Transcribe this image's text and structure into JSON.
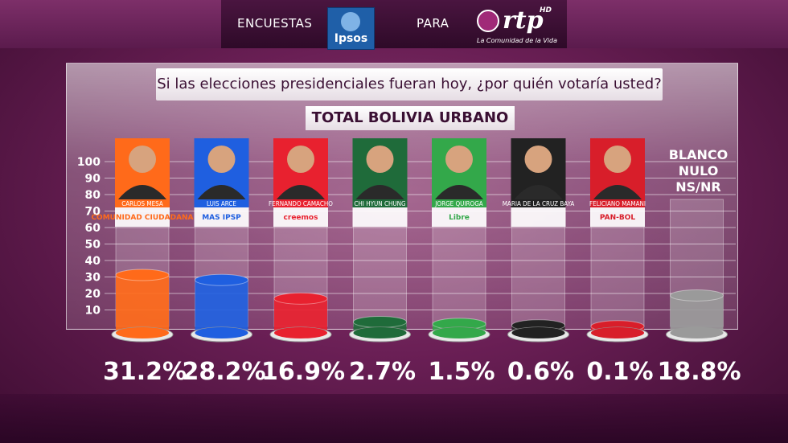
{
  "header": {
    "left_text": "ENCUESTAS",
    "middle_text": "PARA",
    "ipsos_logo": "Ipsos",
    "rtp_logo": "rtp",
    "rtp_hd": "HD",
    "rtp_tagline": "La Comunidad de la Vida"
  },
  "question": "Si las elecciones presidenciales fueran hoy, ¿por quién votaría usted?",
  "subtitle": "TOTAL BOLIVIA URBANO",
  "chart_data": {
    "type": "bar",
    "title": "Si las elecciones presidenciales fueran hoy, ¿por quién votaría usted?",
    "subtitle": "TOTAL BOLIVIA URBANO",
    "ylim": [
      0,
      100
    ],
    "yticks": [
      10,
      20,
      30,
      40,
      50,
      60,
      70,
      80,
      90,
      100
    ],
    "categories": [
      "CARLOS MESA",
      "LUIS ARCE",
      "FERNANDO CAMACHO",
      "CHI HYUN CHUNG",
      "JORGE QUIROGA",
      "MARIA DE LA CRUZ BAYA",
      "FELICIANO MAMANI",
      "BLANCO NULO NS/NR"
    ],
    "values": [
      31.2,
      28.2,
      16.9,
      2.7,
      1.5,
      0.6,
      0.1,
      18.8
    ],
    "labels": [
      "31.2%",
      "28.2%",
      "16.9%",
      "2.7%",
      "1.5%",
      "0.6%",
      "0.1%",
      "18.8%"
    ],
    "parties": [
      "COMUNIDAD CIUDADANA",
      "MAS IPSP",
      "creemos",
      "",
      "Libre",
      "",
      "PAN-BOL",
      ""
    ],
    "colors": [
      "#ff6a1a",
      "#1f5fe0",
      "#e8212f",
      "#1f6b3a",
      "#33a84a",
      "#222222",
      "#d81e2a",
      "#9a9a9a"
    ],
    "blank_label_lines": [
      "BLANCO",
      "NULO",
      "NS/NR"
    ]
  }
}
